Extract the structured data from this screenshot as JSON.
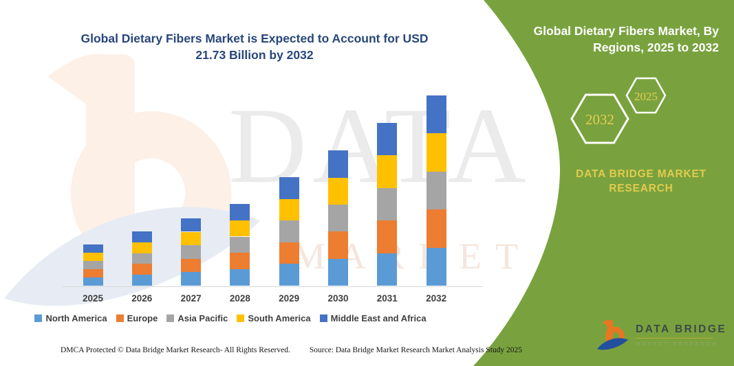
{
  "header": {
    "title": "Global Dietary Fibers Market is Expected to Account for USD 21.73 Billion by 2032"
  },
  "side_panel": {
    "title": "Global Dietary Fibers Market, By Regions, 2025 to 2032",
    "hexagons": [
      {
        "label": "2032"
      },
      {
        "label": "2025"
      }
    ],
    "brand_text": "DATA BRIDGE MARKET RESEARCH",
    "panel_color": "#79a23e",
    "gold_color": "#e2cb4e"
  },
  "watermarks": {
    "line1": "DATA BRIDGE",
    "line2": "MARKET RESEARCH"
  },
  "chart_data": {
    "type": "bar",
    "stacked": true,
    "title": "Global Dietary Fibers Market is Expected to Account for USD 21.73 Billion by 2032",
    "units": "USD Billion",
    "categories": [
      "2025",
      "2026",
      "2027",
      "2028",
      "2029",
      "2030",
      "2031",
      "2032"
    ],
    "series": [
      {
        "name": "North America",
        "color": "#5b9bd5",
        "values": [
          0.94,
          1.24,
          1.54,
          1.87,
          2.48,
          3.09,
          3.72,
          4.35
        ]
      },
      {
        "name": "Europe",
        "color": "#ed7d31",
        "values": [
          0.94,
          1.24,
          1.54,
          1.87,
          2.48,
          3.09,
          3.72,
          4.35
        ]
      },
      {
        "name": "Asia Pacific",
        "color": "#a5a5a5",
        "values": [
          0.94,
          1.24,
          1.54,
          1.87,
          2.48,
          3.09,
          3.72,
          4.35
        ]
      },
      {
        "name": "South America",
        "color": "#ffc000",
        "values": [
          0.94,
          1.24,
          1.54,
          1.87,
          2.48,
          3.09,
          3.72,
          4.35
        ]
      },
      {
        "name": "Middle East and Africa",
        "color": "#4472c4",
        "values": [
          0.94,
          1.24,
          1.54,
          1.87,
          2.48,
          3.09,
          3.72,
          4.35
        ]
      }
    ],
    "estimated_totals": [
      4.7,
      6.2,
      7.7,
      9.35,
      12.4,
      15.45,
      18.6,
      21.73
    ],
    "xlabel": "",
    "ylabel": "",
    "ylim": [
      0,
      22
    ],
    "yaxis_visible": false,
    "gridlines": false,
    "legend_position": "bottom"
  },
  "logo": {
    "title": "DATA BRIDGE",
    "subtitle": "MARKET RESEARCH"
  },
  "footer": {
    "left": "DMCA Protected © Data Bridge Market Research-  All Rights Reserved.",
    "right": "Source: Data Bridge Market Research  Market Analysis Study 2025"
  }
}
